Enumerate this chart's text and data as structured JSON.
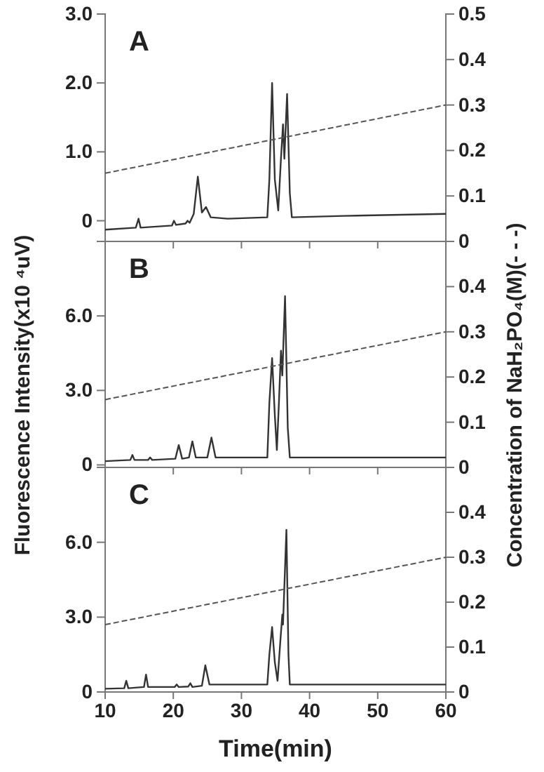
{
  "chart_data": [
    {
      "type": "line",
      "title": "A",
      "xlim": [
        10,
        60
      ],
      "xticks": [
        10,
        20,
        30,
        40,
        50,
        60
      ],
      "ylim": [
        -0.3,
        3.0
      ],
      "yticks": [
        {
          "value": 0,
          "label": "0"
        },
        {
          "value": 1,
          "label": "1.0"
        },
        {
          "value": 2,
          "label": "2.0"
        },
        {
          "value": 3,
          "label": "3.0"
        }
      ],
      "y2lim": [
        0,
        0.5
      ],
      "y2ticks": [
        0,
        0.1,
        0.2,
        0.3,
        0.4,
        0.5
      ],
      "tick_labels": "y",
      "grid": false,
      "marker": "none",
      "series": [
        {
          "color": "#333333",
          "line_style": "solid",
          "x": [
            10,
            14.5,
            14.9,
            15.2,
            19.8,
            20.1,
            20.4,
            21.8,
            22.1,
            22.4,
            23.0,
            23.6,
            24.2,
            24.8,
            25.5,
            28,
            33.8,
            34.1,
            34.5,
            34.9,
            35.4,
            35.8,
            36.1,
            36.3,
            36.7,
            37.1,
            37.4,
            45,
            60
          ],
          "values": [
            -0.13,
            -0.1,
            0.03,
            -0.1,
            -0.07,
            0.0,
            -0.06,
            -0.04,
            0.0,
            -0.03,
            0.1,
            0.64,
            0.12,
            0.2,
            0.05,
            0.03,
            0.05,
            0.6,
            2.0,
            0.6,
            0.15,
            0.9,
            1.4,
            0.9,
            1.84,
            0.4,
            0.05,
            0.07,
            0.1
          ]
        },
        {
          "color": "#555555",
          "line_style": "dashed",
          "axis": "y2",
          "x": [
            10,
            60
          ],
          "values": [
            0.15,
            0.3
          ]
        }
      ]
    },
    {
      "type": "line",
      "title": "B",
      "ylabel": "Fluorescence Intensity(x10 ⁴uV)",
      "y2label": "Concentration of NaH₂PO₄(M)(- - -)",
      "xlim": [
        10,
        60
      ],
      "xticks": [
        10,
        20,
        30,
        40,
        50,
        60
      ],
      "ylim": [
        -0.1,
        9.0
      ],
      "yticks": [
        {
          "value": 0,
          "label": "0"
        },
        {
          "value": 3,
          "label": "3.0"
        },
        {
          "value": 6,
          "label": "6.0"
        }
      ],
      "y2lim": [
        0,
        0.5
      ],
      "y2ticks": [
        0,
        0.1,
        0.2,
        0.3,
        0.4
      ],
      "tick_labels": "y",
      "grid": false,
      "marker": "none",
      "series": [
        {
          "color": "#333333",
          "line_style": "solid",
          "x": [
            10,
            13.7,
            14,
            14.3,
            16.3,
            16.6,
            16.9,
            20.3,
            20.8,
            21.3,
            22.3,
            22.8,
            23.3,
            25,
            25.6,
            26.2,
            33.8,
            34.1,
            34.5,
            34.9,
            35.2,
            35.5,
            35.8,
            36.0,
            36.4,
            36.8,
            37.1,
            60
          ],
          "values": [
            0.15,
            0.2,
            0.4,
            0.2,
            0.2,
            0.3,
            0.2,
            0.25,
            0.8,
            0.25,
            0.3,
            0.95,
            0.3,
            0.3,
            1.1,
            0.3,
            0.3,
            2.5,
            4.3,
            2.0,
            0.6,
            2.5,
            4.6,
            3.6,
            6.8,
            1.5,
            0.3,
            0.3
          ]
        },
        {
          "color": "#555555",
          "line_style": "dashed",
          "axis": "y2",
          "x": [
            10,
            60
          ],
          "values": [
            0.15,
            0.3
          ]
        }
      ]
    },
    {
      "type": "line",
      "title": "C",
      "xlabel": "Time(min)",
      "xlim": [
        10,
        60
      ],
      "xticks": [
        10,
        20,
        30,
        40,
        50,
        60
      ],
      "ylim": [
        0,
        9.0
      ],
      "yticks": [
        {
          "value": 0,
          "label": "0"
        },
        {
          "value": 3,
          "label": "3.0"
        },
        {
          "value": 6,
          "label": "6.0"
        }
      ],
      "y2lim": [
        0,
        0.5
      ],
      "y2ticks": [
        0,
        0.1,
        0.2,
        0.3,
        0.4
      ],
      "grid": false,
      "marker": "none",
      "series": [
        {
          "color": "#333333",
          "line_style": "solid",
          "x": [
            10,
            12.8,
            13.1,
            13.4,
            15.7,
            16.0,
            16.3,
            20.2,
            20.5,
            20.8,
            22.2,
            22.5,
            22.8,
            24.2,
            24.7,
            25.3,
            33.8,
            34.1,
            34.5,
            34.9,
            35.3,
            35.7,
            36.0,
            36.1,
            36.6,
            36.9,
            37.1,
            60
          ],
          "values": [
            0.13,
            0.15,
            0.45,
            0.15,
            0.2,
            0.7,
            0.2,
            0.2,
            0.3,
            0.2,
            0.22,
            0.35,
            0.2,
            0.25,
            1.07,
            0.3,
            0.3,
            1.5,
            2.6,
            1.2,
            0.45,
            2.0,
            3.1,
            2.7,
            6.5,
            1.5,
            0.3,
            0.3
          ]
        },
        {
          "color": "#555555",
          "line_style": "dashed",
          "axis": "y2",
          "x": [
            10,
            60
          ],
          "values": [
            0.15,
            0.3
          ]
        }
      ]
    }
  ]
}
